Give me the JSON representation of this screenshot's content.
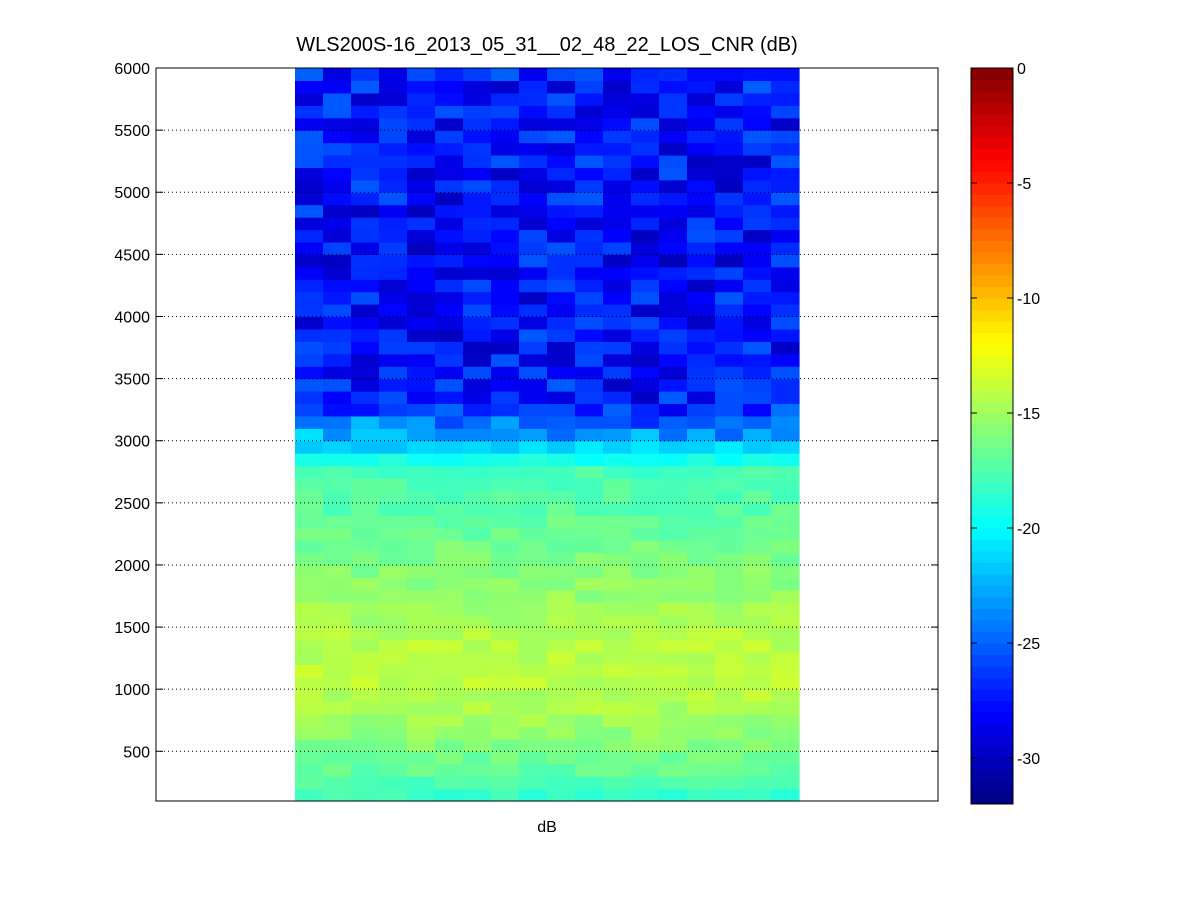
{
  "chart_data": {
    "type": "heatmap",
    "title": "WLS200S-16_2013_05_31__02_48_22_LOS_CNR (dB)",
    "xlabel": "dB",
    "ylabel": "",
    "ylim": [
      100,
      6000
    ],
    "yticks": [
      500,
      1000,
      1500,
      2000,
      2500,
      3000,
      3500,
      4000,
      4500,
      5000,
      5500,
      6000
    ],
    "ytick_labels": [
      "500",
      "1000",
      "1500",
      "2000",
      "2500",
      "3000",
      "3500",
      "4000",
      "4500",
      "5000",
      "5500",
      "6000"
    ],
    "grid": "y-dotted",
    "columns": 18,
    "row_range": [
      100,
      6000
    ],
    "row_step": 100,
    "value_profile": [
      {
        "y": 100,
        "value": -18.5
      },
      {
        "y": 300,
        "value": -17.2
      },
      {
        "y": 600,
        "value": -15.6
      },
      {
        "y": 900,
        "value": -14.5
      },
      {
        "y": 1100,
        "value": -14.0
      },
      {
        "y": 1400,
        "value": -14.3
      },
      {
        "y": 1700,
        "value": -15.1
      },
      {
        "y": 2100,
        "value": -16.3
      },
      {
        "y": 2500,
        "value": -17.3
      },
      {
        "y": 2800,
        "value": -17.9
      },
      {
        "y": 2900,
        "value": -20.5
      },
      {
        "y": 3100,
        "value": -23.5
      },
      {
        "y": 3300,
        "value": -27.5
      },
      {
        "y": 4500,
        "value": -27.8
      },
      {
        "y": 6000,
        "value": -27.3
      }
    ],
    "colorbar": {
      "colormap": "jet",
      "clim": [
        -32,
        0
      ],
      "ticks": [
        0,
        -5,
        -10,
        -15,
        -20,
        -25,
        -30
      ],
      "tick_labels": [
        "0",
        "-5",
        "-10",
        "-15",
        "-20",
        "-25",
        "-30"
      ]
    }
  }
}
